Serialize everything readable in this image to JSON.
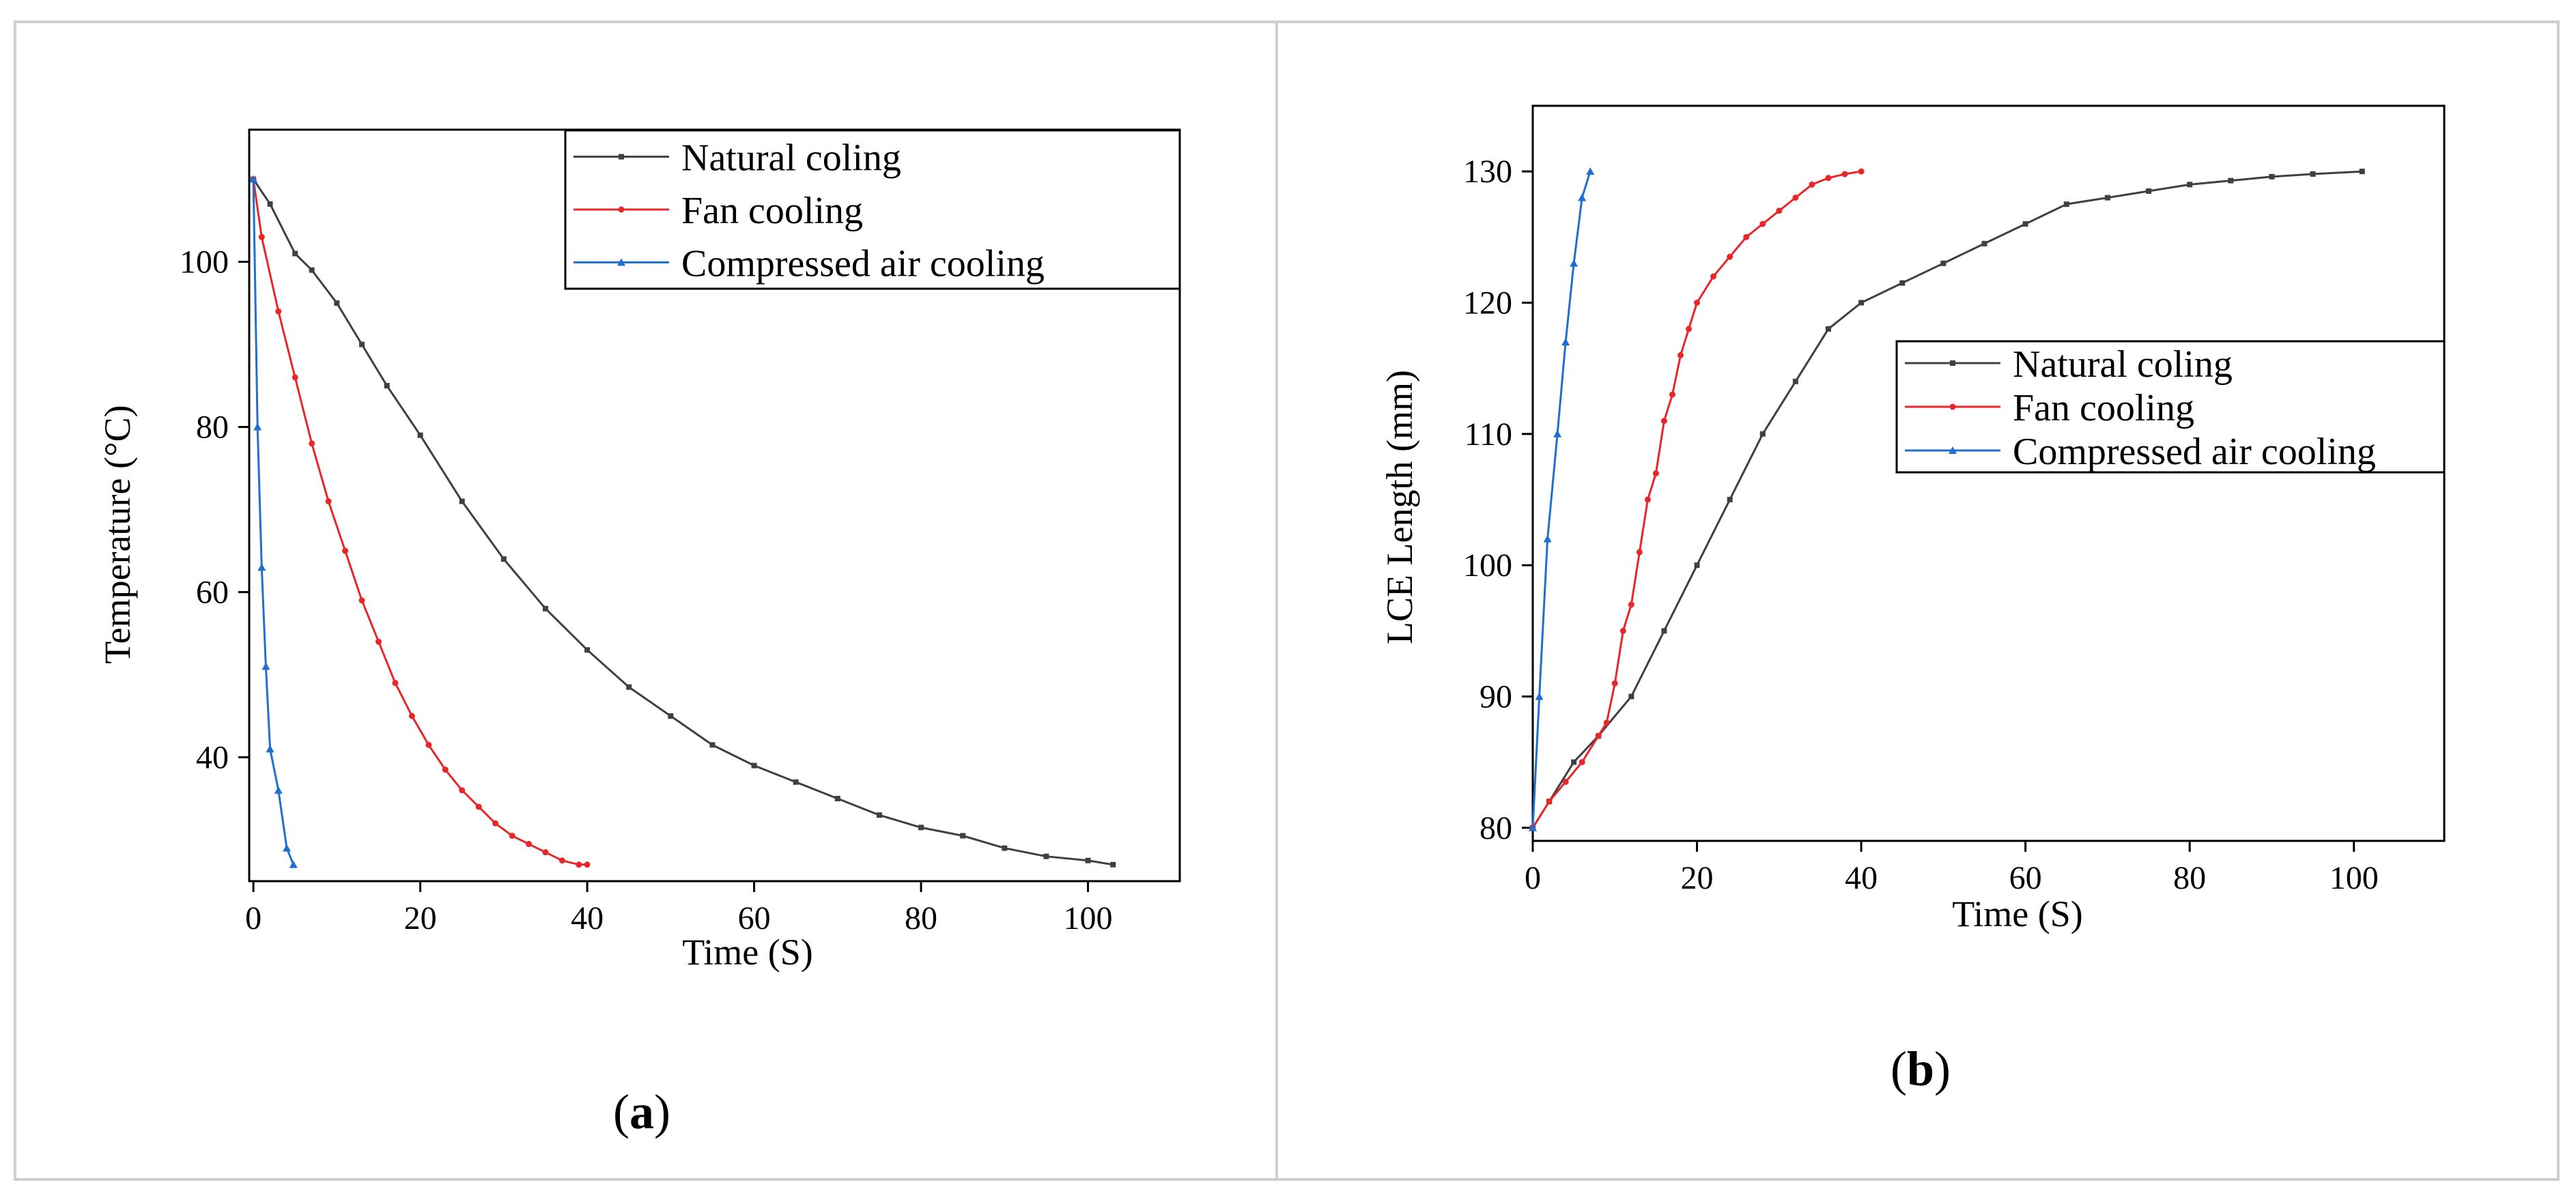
{
  "chart_data": [
    {
      "type": "line",
      "panel_label": "a",
      "xlabel": "Time (S)",
      "ylabel": "Temperature (°C)",
      "xlim": [
        -0.5,
        111
      ],
      "ylim": [
        25,
        116
      ],
      "xticks": [
        0,
        20,
        40,
        60,
        80,
        100
      ],
      "yticks": [
        40,
        60,
        80,
        100
      ],
      "legend_position": "top-right",
      "series": [
        {
          "name": "Natural coling",
          "color": "#404040",
          "marker": "square",
          "x": [
            0,
            2,
            5,
            7,
            10,
            13,
            16,
            20,
            25,
            30,
            35,
            40,
            45,
            50,
            55,
            60,
            65,
            70,
            75,
            80,
            85,
            90,
            95,
            100,
            103
          ],
          "y": [
            110,
            107,
            101,
            99,
            95,
            90,
            85,
            79,
            71,
            64,
            58,
            53,
            48.5,
            45,
            41.5,
            39,
            37,
            35,
            33,
            31.5,
            30.5,
            29,
            28,
            27.5,
            27
          ]
        },
        {
          "name": "Fan cooling",
          "color": "#e8272a",
          "marker": "circle",
          "x": [
            0,
            1,
            3,
            5,
            7,
            9,
            11,
            13,
            15,
            17,
            19,
            21,
            23,
            25,
            27,
            29,
            31,
            33,
            35,
            37,
            39,
            40
          ],
          "y": [
            110,
            103,
            94,
            86,
            78,
            71,
            65,
            59,
            54,
            49,
            45,
            41.5,
            38.5,
            36,
            34,
            32,
            30.5,
            29.5,
            28.5,
            27.5,
            27,
            27
          ]
        },
        {
          "name": "Compressed air cooling",
          "color": "#1f6fd0",
          "marker": "triangle",
          "x": [
            0,
            0.5,
            1,
            1.5,
            2,
            3,
            4,
            4.8
          ],
          "y": [
            110,
            80,
            63,
            51,
            41,
            36,
            29,
            27
          ]
        }
      ]
    },
    {
      "type": "line",
      "panel_label": "b",
      "xlabel": "Time (S)",
      "ylabel": "LCE  Length (mm)",
      "xlim": [
        0,
        111
      ],
      "ylim": [
        79,
        135
      ],
      "xticks": [
        0,
        20,
        40,
        60,
        80,
        100
      ],
      "yticks": [
        80,
        90,
        100,
        110,
        120,
        130
      ],
      "legend_position": "center-right",
      "series": [
        {
          "name": "Natural coling",
          "color": "#404040",
          "marker": "square",
          "x": [
            0,
            2,
            5,
            8,
            12,
            16,
            20,
            24,
            28,
            32,
            36,
            40,
            45,
            50,
            55,
            60,
            65,
            70,
            75,
            80,
            85,
            90,
            95,
            101
          ],
          "y": [
            80,
            82,
            85,
            87,
            90,
            95,
            100,
            105,
            110,
            114,
            118,
            120,
            121.5,
            123,
            124.5,
            126,
            127.5,
            128,
            128.5,
            129,
            129.3,
            129.6,
            129.8,
            130
          ]
        },
        {
          "name": "Fan cooling",
          "color": "#e8272a",
          "marker": "circle",
          "x": [
            0,
            2,
            4,
            6,
            8,
            9,
            10,
            11,
            12,
            13,
            14,
            15,
            16,
            17,
            18,
            19,
            20,
            22,
            24,
            26,
            28,
            30,
            32,
            34,
            36,
            38,
            40
          ],
          "y": [
            80,
            82,
            83.5,
            85,
            87,
            88,
            91,
            95,
            97,
            101,
            105,
            107,
            111,
            113,
            116,
            118,
            120,
            122,
            123.5,
            125,
            126,
            127,
            128,
            129,
            129.5,
            129.8,
            130
          ]
        },
        {
          "name": "Compressed air cooling",
          "color": "#1f6fd0",
          "marker": "triangle",
          "x": [
            0,
            0.8,
            1.8,
            3,
            4,
            5,
            6,
            7
          ],
          "y": [
            80,
            90,
            102,
            110,
            117,
            123,
            128,
            130
          ]
        }
      ]
    }
  ]
}
